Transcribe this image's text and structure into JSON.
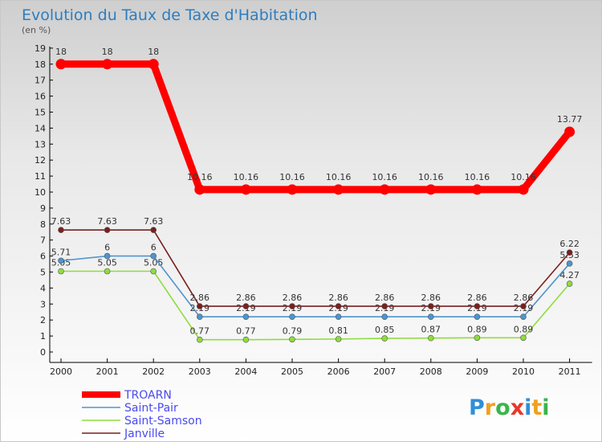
{
  "chart_data": {
    "type": "line",
    "title": "Evolution du Taux de Taxe d'Habitation",
    "subtitle": "(en %)",
    "x": [
      "2000",
      "2001",
      "2002",
      "2003",
      "2004",
      "2005",
      "2006",
      "2007",
      "2008",
      "2009",
      "2010",
      "2011"
    ],
    "ylim": [
      0,
      19
    ],
    "yticks": [
      "0",
      "1",
      "2",
      "3",
      "4",
      "5",
      "6",
      "7",
      "8",
      "9",
      "10",
      "11",
      "12",
      "13",
      "14",
      "15",
      "16",
      "17",
      "18",
      "19"
    ],
    "grid": false,
    "legend": "bottom-left",
    "series": [
      {
        "name": "TROARN",
        "color": "#ff0000",
        "values": [
          18,
          18,
          18,
          10.16,
          10.16,
          10.16,
          10.16,
          10.16,
          10.16,
          10.16,
          10.16,
          13.77
        ],
        "labels": [
          "18",
          "18",
          "18",
          "10.16",
          "10.16",
          "10.16",
          "10.16",
          "10.16",
          "10.16",
          "10.16",
          "10.16",
          "13.77"
        ]
      },
      {
        "name": "Saint-Pair",
        "color": "#4f94cd",
        "values": [
          5.71,
          6,
          6,
          2.2,
          2.2,
          2.2,
          2.2,
          2.2,
          2.2,
          2.2,
          2.2,
          5.53
        ],
        "labels": [
          "5.71",
          "6",
          "6",
          "2.19",
          "2.19",
          "2.19",
          "2.19",
          "2.19",
          "2.19",
          "2.19",
          "2.19",
          "5.53"
        ]
      },
      {
        "name": "Saint-Samson",
        "color": "#8fdc3f",
        "values": [
          5.05,
          5.05,
          5.05,
          0.77,
          0.77,
          0.79,
          0.81,
          0.85,
          0.87,
          0.89,
          0.89,
          4.27
        ],
        "labels": [
          "5.05",
          "5.05",
          "5.05",
          "0.77",
          "0.77",
          "0.79",
          "0.81",
          "0.85",
          "0.87",
          "0.89",
          "0.89",
          "4.27"
        ]
      },
      {
        "name": "Janville",
        "color": "#7a1f1f",
        "values": [
          7.63,
          7.63,
          7.63,
          2.86,
          2.86,
          2.86,
          2.86,
          2.86,
          2.86,
          2.86,
          2.86,
          6.22
        ],
        "labels": [
          "7.63",
          "7.63",
          "7.63",
          "2.86",
          "2.86",
          "2.86",
          "2.86",
          "2.86",
          "2.86",
          "2.86",
          "2.86",
          "6.22"
        ]
      }
    ]
  },
  "logo": {
    "letters": [
      "P",
      "r",
      "o",
      "x",
      "i",
      "t",
      "i"
    ],
    "colors": [
      "#2f8fd8",
      "#f0a020",
      "#39b54a",
      "#e8372c",
      "#2f8fd8",
      "#f0a020",
      "#39b54a"
    ]
  }
}
